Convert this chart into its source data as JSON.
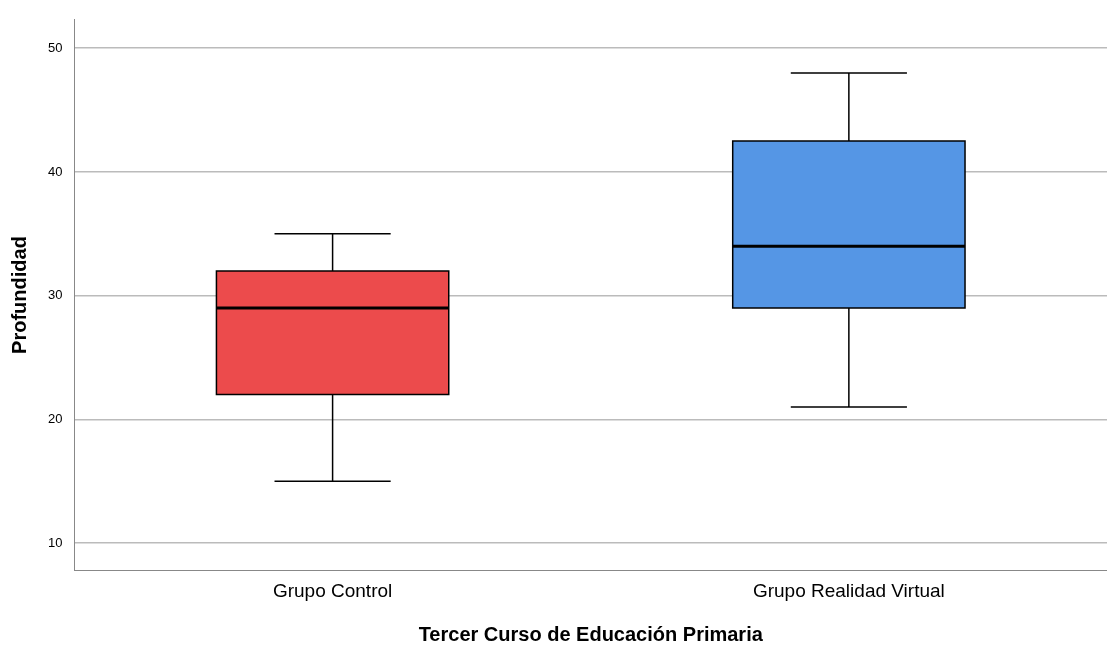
{
  "chart_data": {
    "type": "box",
    "xlabel": "Tercer Curso de Educación Primaria",
    "ylabel": "Profundidad",
    "categories": [
      "Grupo Control",
      "Grupo Realidad Virtual"
    ],
    "colors": [
      "#ec4b4c",
      "#5596e5"
    ],
    "boxes": [
      {
        "low": 15,
        "q1": 22,
        "median": 29,
        "q3": 32,
        "high": 35
      },
      {
        "low": 21,
        "q1": 29,
        "median": 34,
        "q3": 42.5,
        "high": 48
      }
    ],
    "ylim": [
      7.8,
      52.3
    ],
    "yticks": [
      10,
      20,
      30,
      40,
      50
    ],
    "grid": "y",
    "legend": false
  }
}
